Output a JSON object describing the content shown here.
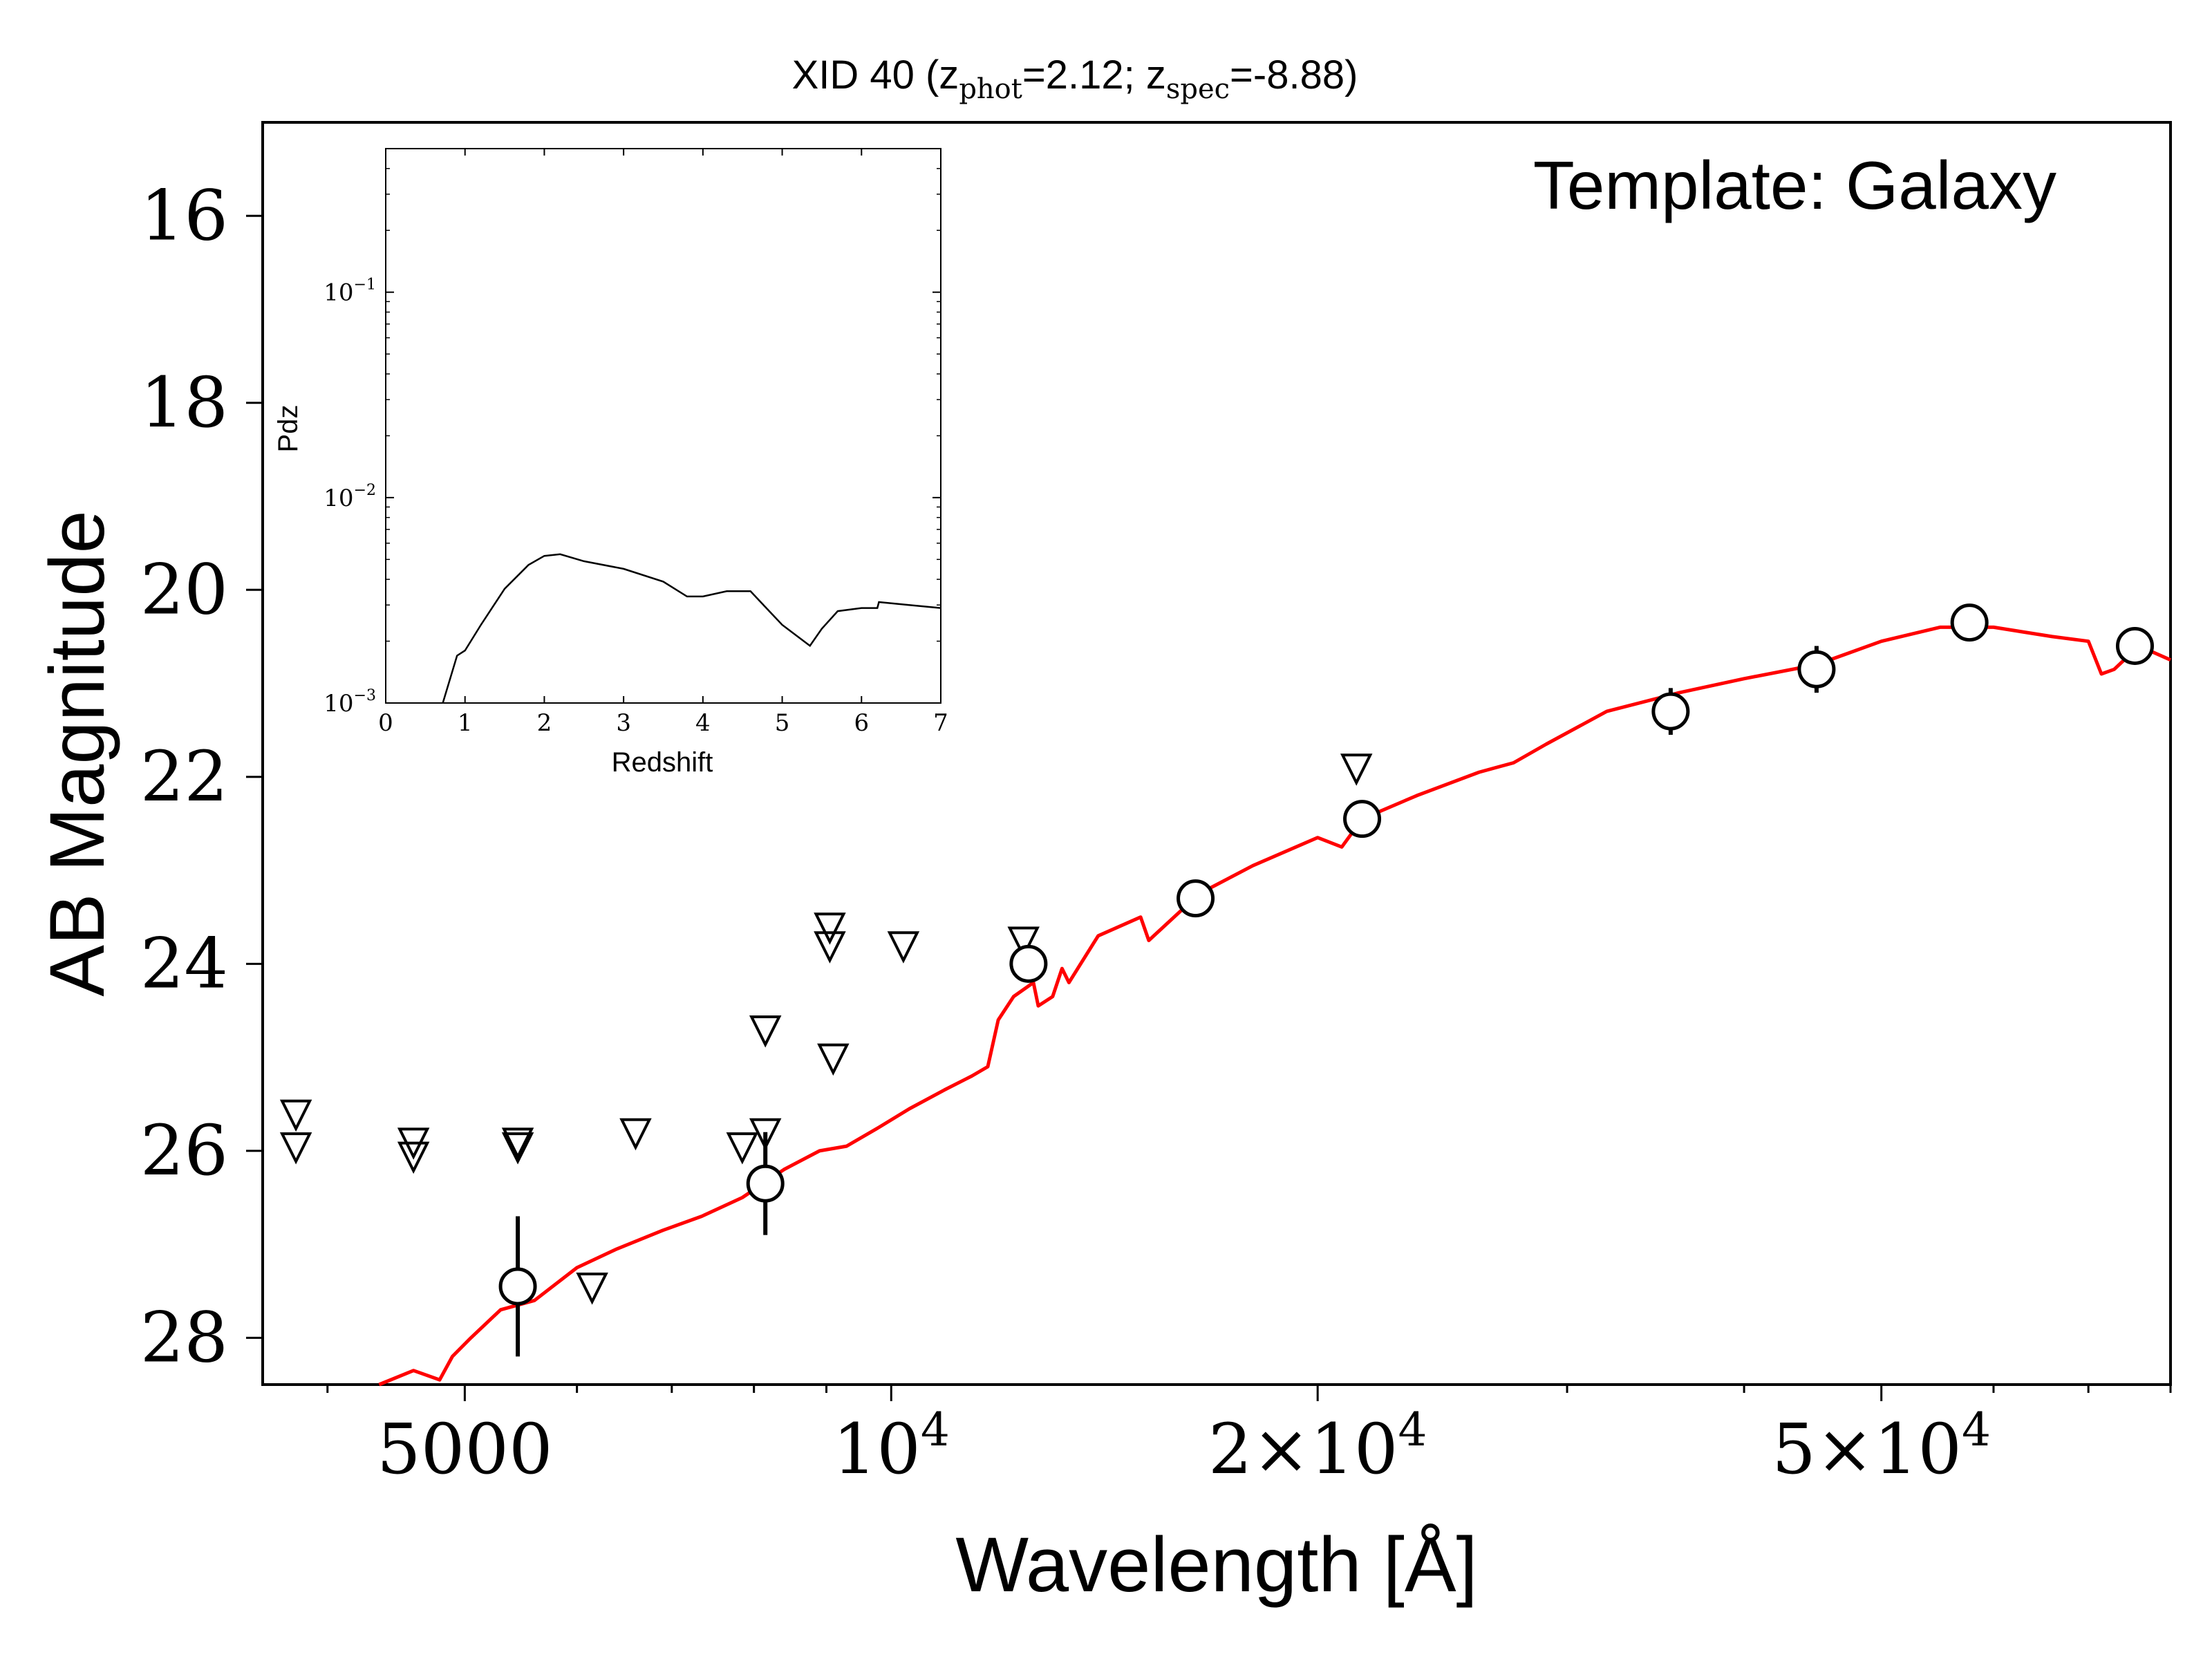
{
  "chart_data": {
    "type": "scatter",
    "title": {
      "prefix": "XID 40 (z",
      "phot_sub": "phot",
      "phot_value": "=2.12; z",
      "spec_sub": "spec",
      "spec_value": "=-8.88)"
    },
    "annotation": "Template: Galaxy",
    "xlabel": "Wavelength [Å]",
    "ylabel": "AB Magnitude",
    "x_scale": "log",
    "xlim": [
      3600,
      80000
    ],
    "ylim": [
      28.5,
      15
    ],
    "y_inverted": true,
    "x_ticks": [
      {
        "value": 5000,
        "base": "5000",
        "exp": ""
      },
      {
        "value": 10000,
        "base": "10",
        "exp": "4"
      },
      {
        "value": 20000,
        "base": "2×10",
        "exp": "4"
      },
      {
        "value": 50000,
        "base": "5×10",
        "exp": "4"
      }
    ],
    "y_ticks": [
      16,
      18,
      20,
      22,
      24,
      26,
      28
    ],
    "detections": [
      {
        "x": 5450,
        "y": 27.45,
        "err": 0.75
      },
      {
        "x": 8150,
        "y": 26.35,
        "err": 0.55
      },
      {
        "x": 12500,
        "y": 24.0,
        "err": 0.15
      },
      {
        "x": 16400,
        "y": 23.3,
        "err": 0.05
      },
      {
        "x": 21500,
        "y": 22.45,
        "err": 0.1
      },
      {
        "x": 35500,
        "y": 21.3,
        "err": 0.25
      },
      {
        "x": 45000,
        "y": 20.85,
        "err": 0.25
      },
      {
        "x": 57700,
        "y": 20.35,
        "err": 0.05
      },
      {
        "x": 75500,
        "y": 20.6,
        "err": 0.05
      }
    ],
    "upper_limits": [
      {
        "x": 3800,
        "y": 25.6
      },
      {
        "x": 3800,
        "y": 25.95
      },
      {
        "x": 4600,
        "y": 25.9
      },
      {
        "x": 4600,
        "y": 26.05
      },
      {
        "x": 5450,
        "y": 25.9
      },
      {
        "x": 5450,
        "y": 25.95
      },
      {
        "x": 6150,
        "y": 27.45
      },
      {
        "x": 6600,
        "y": 25.8
      },
      {
        "x": 7850,
        "y": 25.95
      },
      {
        "x": 8150,
        "y": 24.7
      },
      {
        "x": 8150,
        "y": 25.8
      },
      {
        "x": 9050,
        "y": 23.6
      },
      {
        "x": 9050,
        "y": 23.8
      },
      {
        "x": 9100,
        "y": 25.0
      },
      {
        "x": 10200,
        "y": 23.8
      },
      {
        "x": 12400,
        "y": 23.75
      },
      {
        "x": 21300,
        "y": 21.9
      }
    ],
    "template_line": {
      "color": "#ff0000",
      "points": [
        [
          4350,
          28.5
        ],
        [
          4600,
          28.35
        ],
        [
          4800,
          28.45
        ],
        [
          4900,
          28.2
        ],
        [
          5050,
          28.0
        ],
        [
          5300,
          27.7
        ],
        [
          5600,
          27.6
        ],
        [
          6000,
          27.25
        ],
        [
          6400,
          27.05
        ],
        [
          6900,
          26.85
        ],
        [
          7350,
          26.7
        ],
        [
          7850,
          26.5
        ],
        [
          8400,
          26.2
        ],
        [
          8900,
          26.0
        ],
        [
          9300,
          25.95
        ],
        [
          9800,
          25.75
        ],
        [
          10300,
          25.55
        ],
        [
          10900,
          25.35
        ],
        [
          11400,
          25.2
        ],
        [
          11700,
          25.1
        ],
        [
          11900,
          24.6
        ],
        [
          12200,
          24.35
        ],
        [
          12600,
          24.2
        ],
        [
          13200,
          24.05
        ],
        [
          14000,
          23.7
        ],
        [
          15000,
          23.5
        ],
        [
          16500,
          23.25
        ],
        [
          18000,
          22.95
        ],
        [
          20000,
          22.65
        ],
        [
          21500,
          22.45
        ],
        [
          23500,
          22.2
        ],
        [
          26000,
          21.95
        ],
        [
          29000,
          21.65
        ],
        [
          32000,
          21.3
        ],
        [
          36000,
          21.1
        ],
        [
          40000,
          20.95
        ],
        [
          45000,
          20.8
        ],
        [
          50000,
          20.55
        ],
        [
          55000,
          20.4
        ],
        [
          60000,
          20.4
        ],
        [
          66000,
          20.5
        ],
        [
          70000,
          20.55
        ],
        [
          73000,
          20.85
        ],
        [
          76000,
          20.6
        ],
        [
          80000,
          20.75
        ]
      ],
      "dips": [
        [
          12700,
          24.45
        ],
        [
          13000,
          24.35
        ],
        [
          13350,
          24.2
        ],
        [
          15200,
          23.75
        ],
        [
          20800,
          22.75
        ],
        [
          27500,
          21.85
        ],
        [
          71500,
          20.9
        ]
      ]
    },
    "inset": {
      "type": "line",
      "xlabel": "Redshift",
      "ylabel": "Pdz",
      "y_scale": "log",
      "xlim": [
        0,
        7
      ],
      "ylim": [
        0.001,
        0.5
      ],
      "x_ticks": [
        "0",
        "1",
        "2",
        "3",
        "4",
        "5",
        "6",
        "7"
      ],
      "y_ticks": [
        {
          "value": 0.1,
          "base": "10",
          "exp": "−1"
        },
        {
          "value": 0.01,
          "base": "10",
          "exp": "−2"
        },
        {
          "value": 0.001,
          "base": "10",
          "exp": "−3"
        }
      ],
      "points": [
        [
          0.72,
          0.001
        ],
        [
          0.9,
          0.0017
        ],
        [
          1.0,
          0.0018
        ],
        [
          1.2,
          0.0024
        ],
        [
          1.5,
          0.0036
        ],
        [
          1.8,
          0.0047
        ],
        [
          2.0,
          0.0052
        ],
        [
          2.2,
          0.0053
        ],
        [
          2.5,
          0.0049
        ],
        [
          3.0,
          0.0045
        ],
        [
          3.5,
          0.0039
        ],
        [
          3.8,
          0.0033
        ],
        [
          4.0,
          0.0033
        ],
        [
          4.3,
          0.0035
        ],
        [
          4.6,
          0.0035
        ],
        [
          4.8,
          0.0029
        ],
        [
          5.0,
          0.0024
        ],
        [
          5.2,
          0.0021
        ],
        [
          5.35,
          0.0019
        ],
        [
          5.5,
          0.0023
        ],
        [
          5.7,
          0.0028
        ],
        [
          6.0,
          0.0029
        ],
        [
          6.2,
          0.0029
        ],
        [
          6.22,
          0.0031
        ],
        [
          6.6,
          0.003
        ],
        [
          7.0,
          0.0029
        ]
      ]
    }
  }
}
